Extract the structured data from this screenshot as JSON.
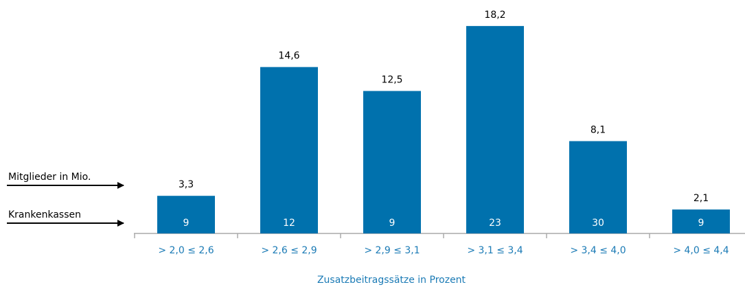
{
  "chart_data": {
    "type": "bar",
    "x_label": "Zusatzbeitragssätze in Prozent",
    "categories": [
      "> 2,0 ≤ 2,6",
      "> 2,6 ≤ 2,9",
      "> 2,9 ≤ 3,1",
      "> 3,1 ≤ 3,4",
      "> 3,4 ≤ 4,0",
      "> 4,0 ≤ 4,4"
    ],
    "series": [
      {
        "name": "Mitglieder in Mio.",
        "color": "#0071ad",
        "values": [
          3.3,
          14.6,
          12.5,
          18.2,
          8.1,
          2.1
        ],
        "value_labels": [
          "3,3",
          "14,6",
          "12,5",
          "18,2",
          "8,1",
          "2,1"
        ]
      },
      {
        "name": "Krankenkassen",
        "values": [
          9,
          12,
          9,
          23,
          30,
          9
        ]
      }
    ]
  }
}
